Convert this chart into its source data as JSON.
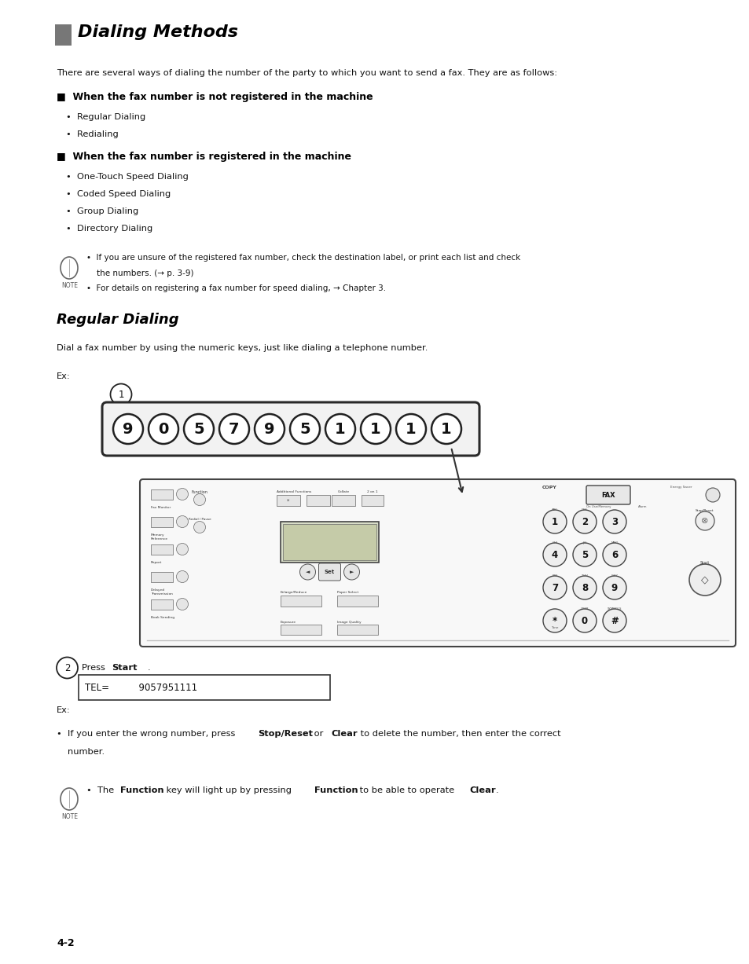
{
  "bg_color": "#ffffff",
  "page_width": 9.54,
  "page_height": 12.27,
  "lm": 0.72,
  "rm": 9.1,
  "title": "Dialing Methods",
  "title_color": "#555555",
  "intro_text": "There are several ways of dialing the number of the party to which you want to send a fax. They are as follows:",
  "s1_header": "■  When the fax number is not registered in the machine",
  "s1_items": [
    "Regular Dialing",
    "Redialing"
  ],
  "s2_header": "■  When the fax number is registered in the machine",
  "s2_items": [
    "One-Touch Speed Dialing",
    "Coded Speed Dialing",
    "Group Dialing",
    "Directory Dialing"
  ],
  "note1_lines": [
    "•  If you are unsure of the registered fax number, check the destination label, or print each list and check",
    "    the numbers. (→ p. 3-9)",
    "•  For details on registering a fax number for speed dialing, → Chapter 3."
  ],
  "rd_header": "Regular Dialing",
  "rd_intro": "Dial a fax number by using the numeric keys, just like dialing a telephone number.",
  "ex1": "Ex:",
  "digits": [
    "9",
    "0",
    "5",
    "7",
    "9",
    "5",
    "1",
    "1",
    "1",
    "1"
  ],
  "step2_press": "Press ",
  "step2_bold": "Start",
  "step2_end": ".",
  "tel_text": "TEL=          9057951111",
  "ex2": "Ex:",
  "bul_pre": "•  If you enter the wrong number, press ",
  "bul_b1": "Stop/Reset",
  "bul_mid": " or ",
  "bul_b2": "Clear",
  "bul_post": " to delete the number, then enter the correct",
  "bul_line2": "number.",
  "note2_pre": "•  The ",
  "note2_b1": "Function",
  "note2_m1": " key will light up by pressing ",
  "note2_b2": "Function",
  "note2_m2": " to be able to operate ",
  "note2_b3": "Clear",
  "note2_end": ".",
  "page_num": "4-2"
}
